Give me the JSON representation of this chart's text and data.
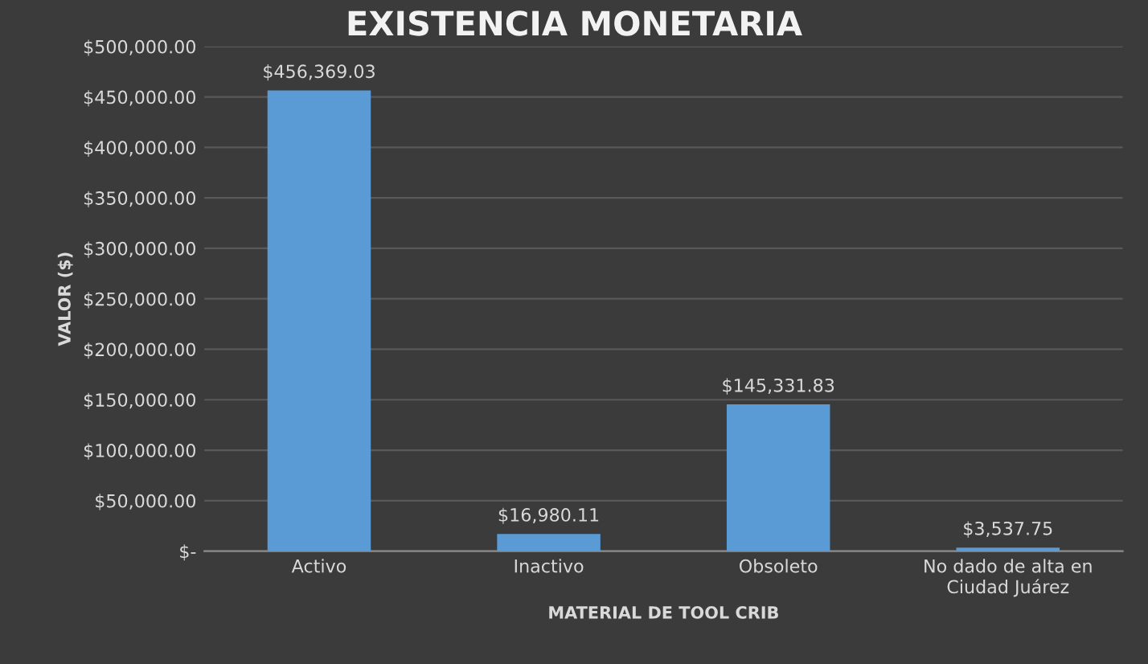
{
  "chart_data": {
    "type": "bar",
    "title": "EXISTENCIA MONETARIA",
    "xlabel": "MATERIAL DE TOOL CRIB",
    "ylabel": "VALOR ($)",
    "categories": [
      "Activo",
      "Inactivo",
      "Obsoleto",
      "No dado de alta en\nCiudad Juárez"
    ],
    "values": [
      456369.03,
      16980.11,
      145331.83,
      3537.75
    ],
    "value_labels": [
      "$456,369.03",
      "$16,980.11",
      "$145,331.83",
      "$3,537.75"
    ],
    "color": "#5b9bd5",
    "ylim": [
      0,
      500000
    ],
    "yticks": [
      {
        "value": 0,
        "label": "$-"
      },
      {
        "value": 50000,
        "label": "$50,000.00"
      },
      {
        "value": 100000,
        "label": "$100,000.00"
      },
      {
        "value": 150000,
        "label": "$150,000.00"
      },
      {
        "value": 200000,
        "label": "$200,000.00"
      },
      {
        "value": 250000,
        "label": "$250,000.00"
      },
      {
        "value": 300000,
        "label": "$300,000.00"
      },
      {
        "value": 350000,
        "label": "$350,000.00"
      },
      {
        "value": 400000,
        "label": "$400,000.00"
      },
      {
        "value": 450000,
        "label": "$450,000.00"
      },
      {
        "value": 500000,
        "label": "$500,000.00"
      }
    ],
    "grid": "y"
  }
}
